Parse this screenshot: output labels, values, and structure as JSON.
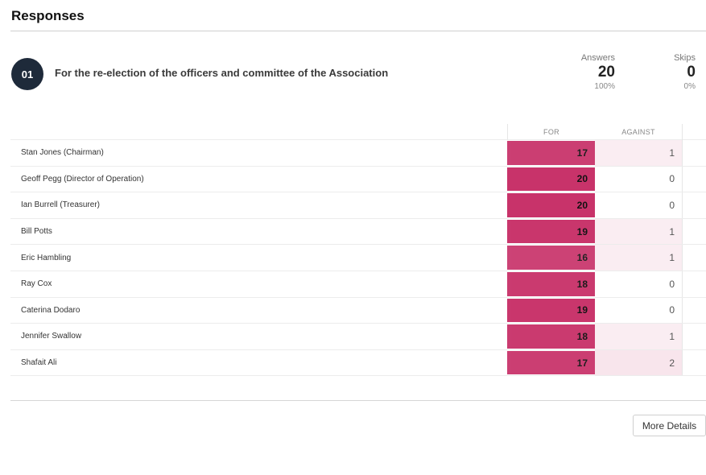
{
  "heading": "Responses",
  "question": {
    "number": "01",
    "text": "For the re-election of the officers and committee of the Association"
  },
  "stats": {
    "answers": {
      "label": "Answers",
      "value": "20",
      "percent": "100%"
    },
    "skips": {
      "label": "Skips",
      "value": "0",
      "percent": "0%"
    }
  },
  "table": {
    "columns": {
      "for": "FOR",
      "against": "AGAINST"
    },
    "rows": [
      {
        "name": "Stan Jones (Chairman)",
        "for": 17,
        "against": 1
      },
      {
        "name": "Geoff Pegg (Director of Operation)",
        "for": 20,
        "against": 0
      },
      {
        "name": "Ian Burrell (Treasurer)",
        "for": 20,
        "against": 0
      },
      {
        "name": "Bill Potts",
        "for": 19,
        "against": 1
      },
      {
        "name": "Eric Hambling",
        "for": 16,
        "against": 1
      },
      {
        "name": "Ray Cox",
        "for": 18,
        "against": 0
      },
      {
        "name": "Caterina Dodaro",
        "for": 19,
        "against": 0
      },
      {
        "name": "Jennifer Swallow",
        "for": 18,
        "against": 1
      },
      {
        "name": "Shafait Ali",
        "for": 17,
        "against": 2
      }
    ],
    "max_votes": 20
  },
  "colors": {
    "for_fill": "#c8336a",
    "against_tint": "#c8336a",
    "badge": "#1e2a3a"
  },
  "actions": {
    "more_details": "More Details"
  }
}
